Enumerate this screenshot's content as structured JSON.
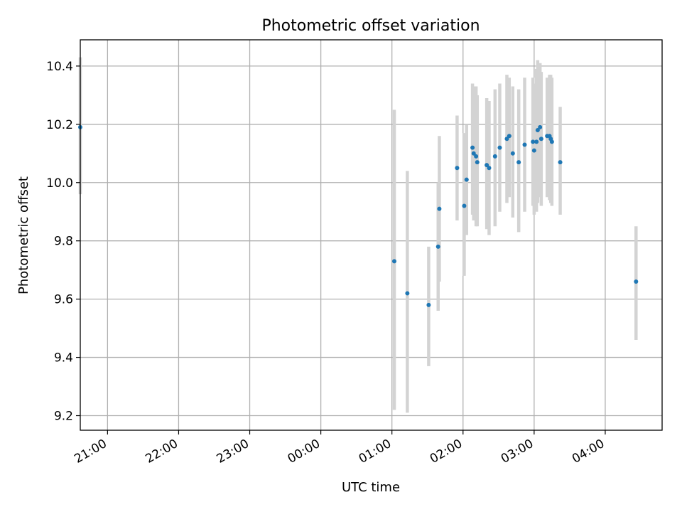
{
  "chart_data": {
    "type": "scatter",
    "title": "Photometric offset variation",
    "xlabel": "UTC time",
    "ylabel": "Photometric offset",
    "x_is_time": true,
    "xlim": [
      "20:37",
      "04:48"
    ],
    "ylim": [
      9.15,
      10.49
    ],
    "x_ticks": [
      "21:00",
      "22:00",
      "23:00",
      "00:00",
      "01:00",
      "02:00",
      "03:00",
      "04:00"
    ],
    "y_ticks": [
      9.2,
      9.4,
      9.6,
      9.8,
      10.0,
      10.2,
      10.4
    ],
    "grid": true,
    "marker_color": "#1f77b4",
    "errorbar_color": "#d3d3d3",
    "points": [
      {
        "t": "20:37",
        "y": 10.19,
        "lo": 9.96,
        "hi": 10.43
      },
      {
        "t": "01:02",
        "y": 9.73,
        "lo": 9.22,
        "hi": 10.25
      },
      {
        "t": "01:13",
        "y": 9.62,
        "lo": 9.21,
        "hi": 10.04
      },
      {
        "t": "01:31",
        "y": 9.58,
        "lo": 9.37,
        "hi": 9.78
      },
      {
        "t": "01:39",
        "y": 9.78,
        "lo": 9.56,
        "hi": 10.0
      },
      {
        "t": "01:40",
        "y": 9.91,
        "lo": 9.66,
        "hi": 10.16
      },
      {
        "t": "01:55",
        "y": 10.05,
        "lo": 9.87,
        "hi": 10.23
      },
      {
        "t": "02:01",
        "y": 9.92,
        "lo": 9.68,
        "hi": 10.17
      },
      {
        "t": "02:03",
        "y": 10.01,
        "lo": 9.82,
        "hi": 10.2
      },
      {
        "t": "02:08",
        "y": 10.12,
        "lo": 9.89,
        "hi": 10.34
      },
      {
        "t": "02:09",
        "y": 10.1,
        "lo": 9.87,
        "hi": 10.33
      },
      {
        "t": "02:11",
        "y": 10.09,
        "lo": 9.85,
        "hi": 10.33
      },
      {
        "t": "02:12",
        "y": 10.07,
        "lo": 9.85,
        "hi": 10.3
      },
      {
        "t": "02:20",
        "y": 10.06,
        "lo": 9.84,
        "hi": 10.29
      },
      {
        "t": "02:22",
        "y": 10.05,
        "lo": 9.82,
        "hi": 10.28
      },
      {
        "t": "02:27",
        "y": 10.09,
        "lo": 9.85,
        "hi": 10.32
      },
      {
        "t": "02:31",
        "y": 10.12,
        "lo": 9.9,
        "hi": 10.34
      },
      {
        "t": "02:37",
        "y": 10.15,
        "lo": 9.93,
        "hi": 10.37
      },
      {
        "t": "02:39",
        "y": 10.16,
        "lo": 9.95,
        "hi": 10.36
      },
      {
        "t": "02:42",
        "y": 10.1,
        "lo": 9.88,
        "hi": 10.33
      },
      {
        "t": "02:47",
        "y": 10.07,
        "lo": 9.83,
        "hi": 10.32
      },
      {
        "t": "02:52",
        "y": 10.13,
        "lo": 9.9,
        "hi": 10.36
      },
      {
        "t": "02:59",
        "y": 10.14,
        "lo": 9.92,
        "hi": 10.36
      },
      {
        "t": "03:00",
        "y": 10.11,
        "lo": 9.89,
        "hi": 10.34
      },
      {
        "t": "03:02",
        "y": 10.14,
        "lo": 9.9,
        "hi": 10.39
      },
      {
        "t": "03:03",
        "y": 10.18,
        "lo": 9.93,
        "hi": 10.42
      },
      {
        "t": "03:05",
        "y": 10.19,
        "lo": 9.95,
        "hi": 10.41
      },
      {
        "t": "03:06",
        "y": 10.15,
        "lo": 9.92,
        "hi": 10.38
      },
      {
        "t": "03:11",
        "y": 10.16,
        "lo": 9.95,
        "hi": 10.36
      },
      {
        "t": "03:13",
        "y": 10.16,
        "lo": 9.94,
        "hi": 10.37
      },
      {
        "t": "03:14",
        "y": 10.15,
        "lo": 9.93,
        "hi": 10.37
      },
      {
        "t": "03:15",
        "y": 10.14,
        "lo": 9.92,
        "hi": 10.36
      },
      {
        "t": "03:22",
        "y": 10.07,
        "lo": 9.89,
        "hi": 10.26
      },
      {
        "t": "04:26",
        "y": 9.66,
        "lo": 9.46,
        "hi": 9.85
      }
    ]
  }
}
